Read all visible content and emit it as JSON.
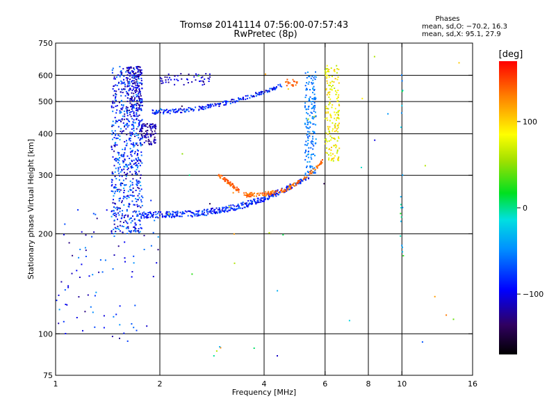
{
  "header": {
    "title_line1": "Tromsø 20141114 07:56:00-07:57:43",
    "title_line2": "RwPretec (8p)",
    "stats_title": "Phases",
    "stats_o": "mean, sd,O: −70.2, 16.3",
    "stats_x": "mean, sd,X:  95.1, 27.9"
  },
  "colorbar": {
    "label": "[deg]",
    "range": [
      -170,
      170
    ],
    "ticks": [
      100,
      0,
      -100
    ],
    "tick_labels": [
      "100",
      "0",
      "−100"
    ]
  },
  "chart_data": {
    "type": "scatter",
    "title": "Tromsø 20141114 07:56:00-07:57:43",
    "subtitle": "RwPretec (8p)",
    "xlabel": "Frequency [MHz]",
    "ylabel": "Stationary phase Virtual Height [km]",
    "x_scale": "log",
    "y_scale": "log",
    "xlim": [
      1,
      16
    ],
    "ylim": [
      75,
      750
    ],
    "x_ticks": [
      1,
      2,
      4,
      6,
      8,
      10,
      16
    ],
    "x_tick_labels": [
      "1",
      "2",
      "4",
      "6",
      "8",
      "10",
      "16"
    ],
    "y_ticks": [
      75,
      100,
      200,
      300,
      400,
      500,
      600,
      750
    ],
    "y_tick_labels": [
      "75",
      "100",
      "200",
      "300",
      "400",
      "500",
      "600",
      "750"
    ],
    "x_gridlines": [
      2,
      4,
      6,
      8,
      10
    ],
    "y_gridlines": [
      100,
      200,
      300,
      400,
      500,
      600
    ],
    "color_variable": "phase [deg]",
    "point_groups": [
      {
        "region": "o-mode vertical band",
        "f": [
          1.45,
          1.75
        ],
        "h": [
          200,
          640
        ],
        "phase": [
          -125,
          -40
        ],
        "n": 700
      },
      {
        "region": "dense core",
        "f": [
          1.6,
          1.78
        ],
        "h": [
          480,
          640
        ],
        "phase": [
          -135,
          -95
        ],
        "n": 140
      },
      {
        "region": "F-layer o-trace",
        "f": [
          1.75,
          5.6
        ],
        "h": [
          228,
          600
        ],
        "phase": [
          -110,
          -60
        ],
        "n": 380
      },
      {
        "region": "upper E-trace",
        "f": [
          1.9,
          4.5
        ],
        "h": [
          460,
          600
        ],
        "phase": [
          -120,
          -60
        ],
        "n": 200
      },
      {
        "region": "x-mode trace",
        "f": [
          2.95,
          5.9
        ],
        "h": [
          260,
          340
        ],
        "phase": [
          125,
          150
        ],
        "n": 140
      },
      {
        "region": "x-mode vertical",
        "f": [
          6.0,
          6.6
        ],
        "h": [
          330,
          640
        ],
        "phase": [
          60,
          110
        ],
        "n": 180
      },
      {
        "region": "low-frequency clutter",
        "f": [
          1.0,
          2.0
        ],
        "h": [
          95,
          260
        ],
        "phase": [
          -130,
          -40
        ],
        "n": 90
      }
    ]
  }
}
